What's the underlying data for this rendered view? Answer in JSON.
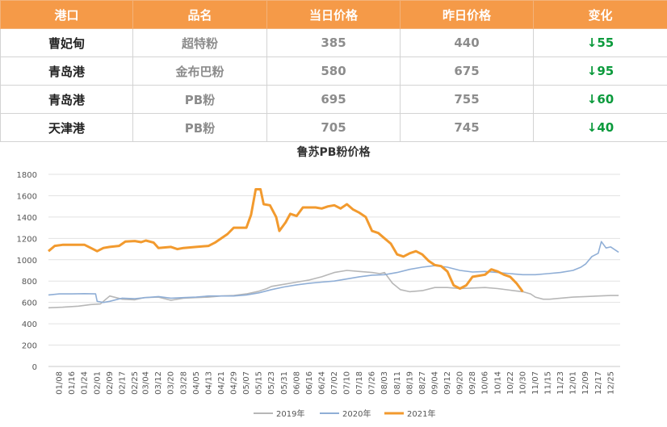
{
  "table": {
    "headers": [
      "港口",
      "品名",
      "当日价格",
      "昨日价格",
      "变化"
    ],
    "rows": [
      {
        "port": "曹妃甸",
        "product": "超特粉",
        "today": "385",
        "yesterday": "440",
        "change": "↓55"
      },
      {
        "port": "青岛港",
        "product": "金布巴粉",
        "today": "580",
        "yesterday": "675",
        "change": "↓95"
      },
      {
        "port": "青岛港",
        "product": "PB粉",
        "today": "695",
        "yesterday": "755",
        "change": "↓60"
      },
      {
        "port": "天津港",
        "product": "PB粉",
        "today": "705",
        "yesterday": "745",
        "change": "↓40"
      }
    ]
  },
  "chart_data": {
    "type": "line",
    "title": "鲁苏PB粉价格",
    "xlabel": "",
    "ylabel": "",
    "ylim": [
      0,
      1800
    ],
    "yticks": [
      0,
      200,
      400,
      600,
      800,
      1000,
      1200,
      1400,
      1600,
      1800
    ],
    "xlim": [
      1,
      365
    ],
    "x_ticks": [
      {
        "label": "01/08",
        "x": 8
      },
      {
        "label": "01/16",
        "x": 16
      },
      {
        "label": "01/24",
        "x": 24
      },
      {
        "label": "02/01",
        "x": 32
      },
      {
        "label": "02/09",
        "x": 40
      },
      {
        "label": "02/17",
        "x": 48
      },
      {
        "label": "02/25",
        "x": 56
      },
      {
        "label": "03/04",
        "x": 63
      },
      {
        "label": "03/12",
        "x": 71
      },
      {
        "label": "03/20",
        "x": 79
      },
      {
        "label": "03/28",
        "x": 87
      },
      {
        "label": "04/05",
        "x": 95
      },
      {
        "label": "04/13",
        "x": 103
      },
      {
        "label": "04/21",
        "x": 111
      },
      {
        "label": "04/29",
        "x": 119
      },
      {
        "label": "05/07",
        "x": 127
      },
      {
        "label": "05/15",
        "x": 135
      },
      {
        "label": "05/23",
        "x": 143
      },
      {
        "label": "05/31",
        "x": 151
      },
      {
        "label": "06/08",
        "x": 159
      },
      {
        "label": "06/16",
        "x": 167
      },
      {
        "label": "06/24",
        "x": 175
      },
      {
        "label": "07/02",
        "x": 183
      },
      {
        "label": "07/10",
        "x": 191
      },
      {
        "label": "07/18",
        "x": 199
      },
      {
        "label": "07/26",
        "x": 207
      },
      {
        "label": "08/03",
        "x": 215
      },
      {
        "label": "08/11",
        "x": 223
      },
      {
        "label": "08/19",
        "x": 231
      },
      {
        "label": "08/27",
        "x": 239
      },
      {
        "label": "09/04",
        "x": 247
      },
      {
        "label": "09/12",
        "x": 255
      },
      {
        "label": "09/20",
        "x": 263
      },
      {
        "label": "09/28",
        "x": 271
      },
      {
        "label": "10/06",
        "x": 279
      },
      {
        "label": "10/14",
        "x": 287
      },
      {
        "label": "10/22",
        "x": 295
      },
      {
        "label": "10/30",
        "x": 303
      },
      {
        "label": "11/07",
        "x": 311
      },
      {
        "label": "11/15",
        "x": 319
      },
      {
        "label": "11/23",
        "x": 327
      },
      {
        "label": "12/01",
        "x": 335
      },
      {
        "label": "12/09",
        "x": 343
      },
      {
        "label": "12/17",
        "x": 351
      },
      {
        "label": "12/25",
        "x": 359
      }
    ],
    "legend_position": "bottom",
    "series": [
      {
        "name": "2019年",
        "color": "#b7b7b7",
        "points": [
          [
            1,
            550
          ],
          [
            10,
            555
          ],
          [
            20,
            565
          ],
          [
            28,
            580
          ],
          [
            34,
            585
          ],
          [
            40,
            660
          ],
          [
            48,
            630
          ],
          [
            56,
            625
          ],
          [
            62,
            645
          ],
          [
            71,
            650
          ],
          [
            79,
            620
          ],
          [
            87,
            640
          ],
          [
            95,
            645
          ],
          [
            103,
            650
          ],
          [
            111,
            660
          ],
          [
            119,
            665
          ],
          [
            127,
            680
          ],
          [
            135,
            705
          ],
          [
            140,
            730
          ],
          [
            143,
            750
          ],
          [
            151,
            770
          ],
          [
            159,
            790
          ],
          [
            167,
            810
          ],
          [
            175,
            840
          ],
          [
            183,
            880
          ],
          [
            191,
            900
          ],
          [
            199,
            890
          ],
          [
            207,
            880
          ],
          [
            212,
            870
          ],
          [
            215,
            880
          ],
          [
            220,
            780
          ],
          [
            225,
            720
          ],
          [
            231,
            700
          ],
          [
            239,
            710
          ],
          [
            247,
            740
          ],
          [
            255,
            740
          ],
          [
            263,
            730
          ],
          [
            271,
            735
          ],
          [
            279,
            740
          ],
          [
            287,
            730
          ],
          [
            295,
            715
          ],
          [
            303,
            700
          ],
          [
            308,
            680
          ],
          [
            311,
            650
          ],
          [
            316,
            630
          ],
          [
            320,
            630
          ],
          [
            327,
            640
          ],
          [
            335,
            650
          ],
          [
            343,
            655
          ],
          [
            351,
            660
          ],
          [
            359,
            665
          ],
          [
            364,
            665
          ]
        ]
      },
      {
        "name": "2020年",
        "color": "#8faed6",
        "points": [
          [
            1,
            670
          ],
          [
            8,
            680
          ],
          [
            16,
            680
          ],
          [
            24,
            682
          ],
          [
            31,
            680
          ],
          [
            32,
            610
          ],
          [
            36,
            600
          ],
          [
            40,
            610
          ],
          [
            48,
            640
          ],
          [
            56,
            635
          ],
          [
            63,
            645
          ],
          [
            71,
            655
          ],
          [
            79,
            640
          ],
          [
            87,
            645
          ],
          [
            95,
            650
          ],
          [
            103,
            660
          ],
          [
            111,
            660
          ],
          [
            119,
            660
          ],
          [
            127,
            670
          ],
          [
            135,
            690
          ],
          [
            143,
            720
          ],
          [
            151,
            745
          ],
          [
            159,
            765
          ],
          [
            167,
            780
          ],
          [
            175,
            790
          ],
          [
            183,
            800
          ],
          [
            191,
            820
          ],
          [
            199,
            840
          ],
          [
            207,
            855
          ],
          [
            215,
            860
          ],
          [
            223,
            880
          ],
          [
            231,
            910
          ],
          [
            239,
            930
          ],
          [
            247,
            945
          ],
          [
            255,
            930
          ],
          [
            263,
            900
          ],
          [
            271,
            885
          ],
          [
            279,
            890
          ],
          [
            287,
            880
          ],
          [
            295,
            870
          ],
          [
            303,
            860
          ],
          [
            311,
            860
          ],
          [
            319,
            870
          ],
          [
            327,
            880
          ],
          [
            335,
            900
          ],
          [
            340,
            930
          ],
          [
            343,
            960
          ],
          [
            347,
            1030
          ],
          [
            351,
            1060
          ],
          [
            353,
            1170
          ],
          [
            356,
            1110
          ],
          [
            359,
            1120
          ],
          [
            364,
            1070
          ]
        ]
      },
      {
        "name": "2021年",
        "color": "#f29a2e",
        "points": [
          [
            1,
            1080
          ],
          [
            5,
            1130
          ],
          [
            10,
            1140
          ],
          [
            16,
            1140
          ],
          [
            24,
            1140
          ],
          [
            28,
            1110
          ],
          [
            32,
            1080
          ],
          [
            36,
            1110
          ],
          [
            40,
            1120
          ],
          [
            46,
            1130
          ],
          [
            50,
            1170
          ],
          [
            56,
            1175
          ],
          [
            60,
            1165
          ],
          [
            63,
            1180
          ],
          [
            68,
            1160
          ],
          [
            71,
            1110
          ],
          [
            79,
            1120
          ],
          [
            83,
            1100
          ],
          [
            87,
            1110
          ],
          [
            95,
            1120
          ],
          [
            103,
            1130
          ],
          [
            107,
            1160
          ],
          [
            111,
            1200
          ],
          [
            115,
            1240
          ],
          [
            119,
            1300
          ],
          [
            127,
            1300
          ],
          [
            130,
            1420
          ],
          [
            133,
            1660
          ],
          [
            136,
            1660
          ],
          [
            138,
            1520
          ],
          [
            142,
            1510
          ],
          [
            146,
            1400
          ],
          [
            148,
            1270
          ],
          [
            152,
            1350
          ],
          [
            155,
            1430
          ],
          [
            159,
            1410
          ],
          [
            163,
            1490
          ],
          [
            171,
            1490
          ],
          [
            175,
            1480
          ],
          [
            179,
            1500
          ],
          [
            183,
            1510
          ],
          [
            187,
            1480
          ],
          [
            191,
            1520
          ],
          [
            195,
            1470
          ],
          [
            199,
            1440
          ],
          [
            203,
            1400
          ],
          [
            207,
            1270
          ],
          [
            211,
            1250
          ],
          [
            215,
            1200
          ],
          [
            219,
            1150
          ],
          [
            223,
            1050
          ],
          [
            227,
            1030
          ],
          [
            231,
            1060
          ],
          [
            235,
            1080
          ],
          [
            239,
            1050
          ],
          [
            243,
            990
          ],
          [
            247,
            950
          ],
          [
            251,
            940
          ],
          [
            255,
            890
          ],
          [
            259,
            760
          ],
          [
            263,
            730
          ],
          [
            267,
            760
          ],
          [
            271,
            840
          ],
          [
            275,
            850
          ],
          [
            279,
            860
          ],
          [
            283,
            910
          ],
          [
            287,
            890
          ],
          [
            291,
            860
          ],
          [
            295,
            840
          ],
          [
            299,
            780
          ],
          [
            303,
            700
          ]
        ]
      }
    ]
  }
}
